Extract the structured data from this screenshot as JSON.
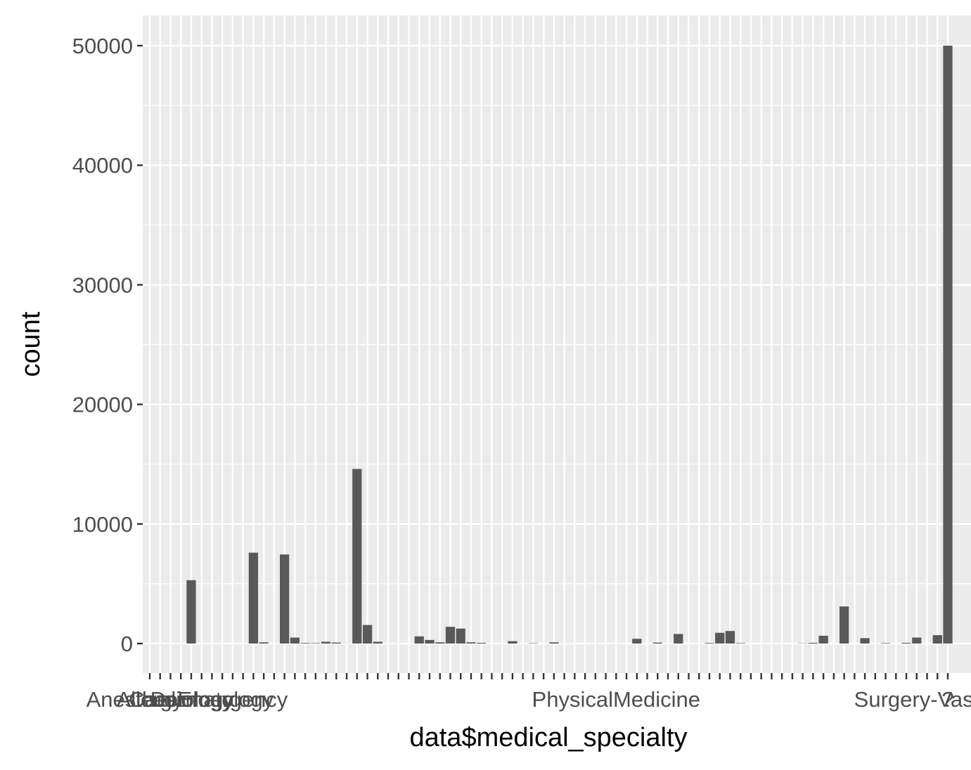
{
  "chart_data": {
    "type": "bar",
    "title": "",
    "xlabel": "data$medical_specialty",
    "ylabel": "count",
    "ylim": [
      0,
      52000
    ],
    "yticks": [
      0,
      10000,
      20000,
      30000,
      40000,
      50000
    ],
    "ytick_labels": [
      "0",
      "10000",
      "20000",
      "30000",
      "40000",
      "50000"
    ],
    "xtick_labels_visible": [
      "Allergy",
      "Anesthesiology",
      "Cardiology",
      "Dermatology",
      "Emergency",
      "PhysicalMedicine",
      "Surgery-Vascular",
      "?"
    ],
    "grid": true,
    "legend": "none",
    "colors": {
      "bar": "#595959",
      "panel": "#ebebeb",
      "grid": "#ffffff"
    },
    "values": [
      1,
      1,
      1,
      1,
      5300,
      2,
      1,
      1,
      1,
      1,
      7600,
      100,
      3,
      7450,
      500,
      50,
      40,
      150,
      80,
      10,
      14600,
      1550,
      150,
      3,
      5,
      1,
      600,
      300,
      100,
      1400,
      1250,
      100,
      60,
      2,
      2,
      200,
      1,
      30,
      1,
      100,
      5,
      3,
      1,
      2,
      1,
      2,
      1,
      400,
      1,
      80,
      1,
      800,
      2,
      1,
      50,
      900,
      1050,
      40,
      2,
      1,
      1,
      1,
      1,
      20,
      60,
      650,
      1,
      3100,
      1,
      450,
      1,
      40,
      1,
      60,
      500,
      1,
      700,
      50000
    ]
  }
}
